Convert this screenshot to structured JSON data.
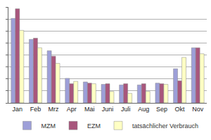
{
  "chart_data": {
    "type": "bar",
    "categories": [
      "Jan",
      "Feb",
      "Mrz",
      "Apr",
      "Mai",
      "Juni",
      "Juli",
      "Aug",
      "Sep",
      "Okt",
      "Nov"
    ],
    "series": [
      {
        "name": "MZM",
        "color": "#9d9fd8",
        "values": [
          7.05,
          5.3,
          4.35,
          2.05,
          1.75,
          1.55,
          1.5,
          1.5,
          1.65,
          2.85,
          4.6
        ]
      },
      {
        "name": "EZM",
        "color": "#a8567c",
        "values": [
          7.85,
          5.4,
          3.9,
          1.6,
          1.65,
          1.6,
          1.6,
          1.6,
          1.6,
          1.85,
          4.6
        ]
      },
      {
        "name": "tatsächlicher Verbrauch",
        "color": "#ffffc4",
        "values": [
          6.05,
          4.6,
          3.3,
          1.8,
          1.6,
          0.95,
          0.8,
          0.95,
          1.55,
          3.8,
          4.1
        ]
      }
    ],
    "ylim": [
      0,
      8
    ],
    "yticks": [
      0,
      1,
      2,
      3,
      4,
      5,
      6,
      7,
      8
    ],
    "grid": true,
    "legend": "bottom",
    "tick_labels": "x"
  }
}
